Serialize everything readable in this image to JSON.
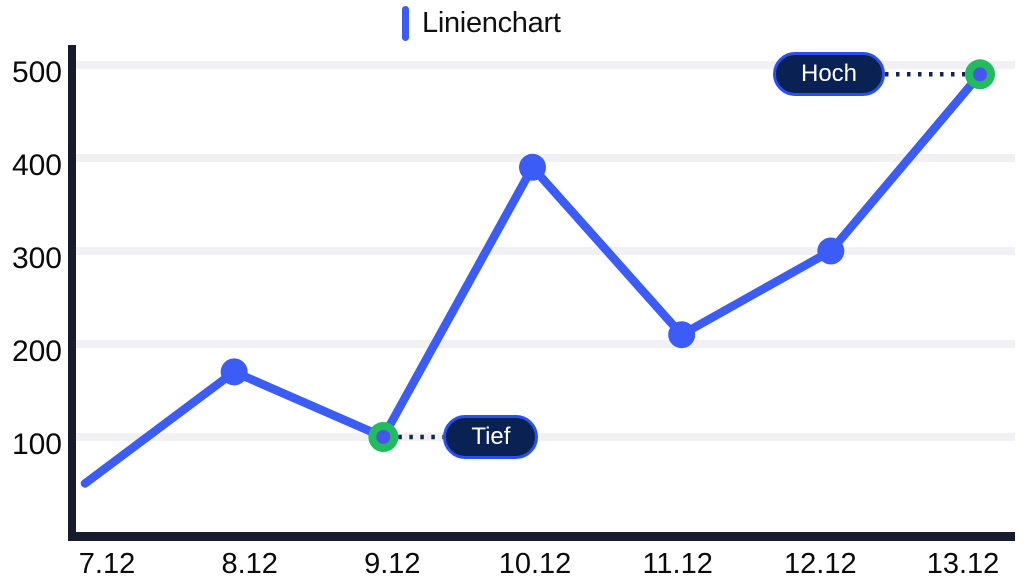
{
  "title": "Linienchart",
  "chart_data": {
    "type": "line",
    "title": "Linienchart",
    "categories": [
      "7.12",
      "8.12",
      "9.12",
      "10.12",
      "11.12",
      "12.12",
      "13.12"
    ],
    "values": [
      50,
      170,
      100,
      390,
      210,
      300,
      490
    ],
    "xlabel": "",
    "ylabel": "",
    "ylim": [
      0,
      520
    ],
    "yticks": [
      100,
      200,
      300,
      400,
      500
    ],
    "grid": "horizontal-light",
    "legend": "none",
    "annotations": [
      {
        "label": "Tief",
        "category": "9.12",
        "value": 100,
        "side": "right"
      },
      {
        "label": "Hoch",
        "category": "13.12",
        "value": 490,
        "side": "left"
      }
    ]
  },
  "colors": {
    "accent": "#3b5cf6",
    "marker_fill": "#3b5cf6",
    "highlight_ring": "#22bc5e",
    "highlight_core": "#4656ea",
    "pill_background": "#0a2154",
    "pill_border": "#2b50f0",
    "pill_text": "#ffffff",
    "axis": "#161c2e",
    "gridline": "#f1f1f3",
    "label_text": "#0a0a0a",
    "connector": "#13254e",
    "background": "#ffffff"
  }
}
